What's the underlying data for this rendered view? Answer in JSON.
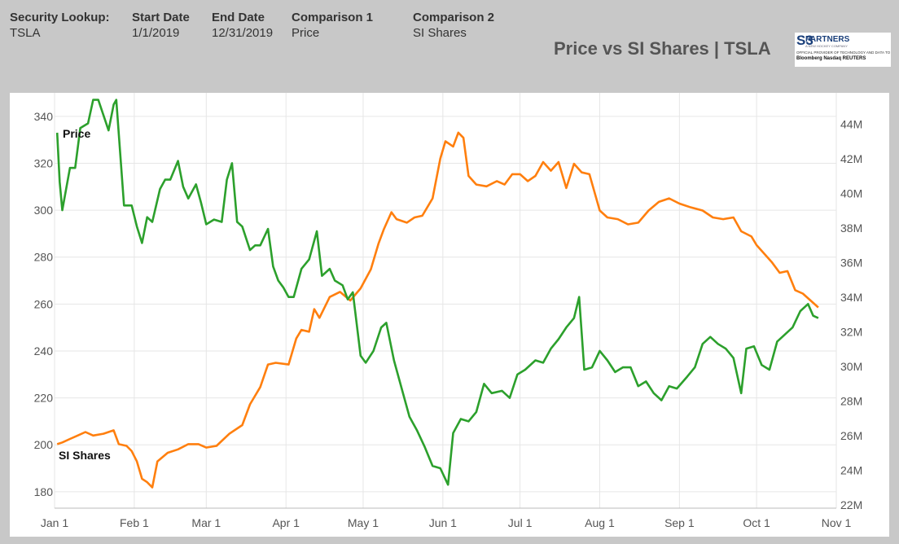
{
  "header": {
    "fields": [
      {
        "label": "Security Lookup:",
        "value": "TSLA"
      },
      {
        "label": "Start Date",
        "value": "1/1/2019"
      },
      {
        "label": "End Date",
        "value": "12/31/2019"
      },
      {
        "label": "Comparison 1",
        "value": "Price"
      },
      {
        "label": "Comparison 2",
        "value": "SI Shares"
      }
    ],
    "title": "Price vs SI Shares | TSLA",
    "logo": {
      "mark": "S3",
      "name": "PARTNERS",
      "tagline": "A NEW HOCKEY COMPANY",
      "subtitle": "OFFICIAL PROVIDER OF TECHNOLOGY AND DATA TO",
      "partners": "Bloomberg  Nasdaq  REUTERS"
    }
  },
  "colors": {
    "price": "#2ca02c",
    "si_shares": "#ff7f0e",
    "grid": "#e6e6e6"
  },
  "chart_data": {
    "type": "line",
    "x_ticks": [
      "Jan 1",
      "Feb 1",
      "Mar 1",
      "Apr 1",
      "May 1",
      "Jun 1",
      "Jul 1",
      "Aug 1",
      "Sep 1",
      "Oct 1",
      "Nov 1"
    ],
    "y_left": {
      "ticks": [
        "180",
        "200",
        "220",
        "240",
        "260",
        "280",
        "300",
        "320",
        "340"
      ],
      "range": [
        173,
        350
      ]
    },
    "y_right": {
      "ticks": [
        "22M",
        "24M",
        "26M",
        "28M",
        "30M",
        "32M",
        "34M",
        "36M",
        "38M",
        "40M",
        "42M",
        "44M"
      ],
      "range": [
        21.8,
        45.8
      ]
    },
    "series": [
      {
        "name": "Price",
        "axis": "left",
        "points": [
          [
            "2019-01-02",
            333
          ],
          [
            "2019-01-03",
            312
          ],
          [
            "2019-01-04",
            300
          ],
          [
            "2019-01-07",
            318
          ],
          [
            "2019-01-09",
            318
          ],
          [
            "2019-01-11",
            335
          ],
          [
            "2019-01-14",
            337
          ],
          [
            "2019-01-16",
            347
          ],
          [
            "2019-01-18",
            347
          ],
          [
            "2019-01-22",
            334
          ],
          [
            "2019-01-24",
            345
          ],
          [
            "2019-01-25",
            347
          ],
          [
            "2019-01-28",
            302
          ],
          [
            "2019-01-30",
            302
          ],
          [
            "2019-01-31",
            302
          ],
          [
            "2019-02-02",
            293
          ],
          [
            "2019-02-04",
            286
          ],
          [
            "2019-02-06",
            297
          ],
          [
            "2019-02-08",
            295
          ],
          [
            "2019-02-11",
            309
          ],
          [
            "2019-02-13",
            313
          ],
          [
            "2019-02-15",
            313
          ],
          [
            "2019-02-18",
            321
          ],
          [
            "2019-02-20",
            310
          ],
          [
            "2019-02-22",
            305
          ],
          [
            "2019-02-25",
            311
          ],
          [
            "2019-02-27",
            303
          ],
          [
            "2019-03-01",
            294
          ],
          [
            "2019-03-04",
            296
          ],
          [
            "2019-03-07",
            295
          ],
          [
            "2019-03-09",
            313
          ],
          [
            "2019-03-11",
            320
          ],
          [
            "2019-03-13",
            295
          ],
          [
            "2019-03-15",
            293
          ],
          [
            "2019-03-18",
            283
          ],
          [
            "2019-03-20",
            285
          ],
          [
            "2019-03-22",
            285
          ],
          [
            "2019-03-25",
            292
          ],
          [
            "2019-03-27",
            276
          ],
          [
            "2019-03-29",
            270
          ],
          [
            "2019-03-31",
            267
          ],
          [
            "2019-04-02",
            263
          ],
          [
            "2019-04-04",
            263
          ],
          [
            "2019-04-07",
            275
          ],
          [
            "2019-04-10",
            279
          ],
          [
            "2019-04-13",
            291
          ],
          [
            "2019-04-15",
            272
          ],
          [
            "2019-04-18",
            275
          ],
          [
            "2019-04-20",
            270
          ],
          [
            "2019-04-23",
            268
          ],
          [
            "2019-04-25",
            262
          ],
          [
            "2019-04-27",
            265
          ],
          [
            "2019-04-30",
            238
          ],
          [
            "2019-05-02",
            235
          ],
          [
            "2019-05-05",
            240
          ],
          [
            "2019-05-08",
            250
          ],
          [
            "2019-05-10",
            252
          ],
          [
            "2019-05-13",
            236
          ],
          [
            "2019-05-16",
            224
          ],
          [
            "2019-05-19",
            212
          ],
          [
            "2019-05-22",
            206
          ],
          [
            "2019-05-25",
            199
          ],
          [
            "2019-05-28",
            191
          ],
          [
            "2019-05-31",
            190
          ],
          [
            "2019-06-03",
            183
          ],
          [
            "2019-06-05",
            205
          ],
          [
            "2019-06-08",
            211
          ],
          [
            "2019-06-11",
            210
          ],
          [
            "2019-06-14",
            214
          ],
          [
            "2019-06-17",
            226
          ],
          [
            "2019-06-20",
            222
          ],
          [
            "2019-06-24",
            223
          ],
          [
            "2019-06-27",
            220
          ],
          [
            "2019-06-30",
            230
          ],
          [
            "2019-07-03",
            232
          ],
          [
            "2019-07-07",
            236
          ],
          [
            "2019-07-10",
            235
          ],
          [
            "2019-07-13",
            241
          ],
          [
            "2019-07-16",
            245
          ],
          [
            "2019-07-19",
            250
          ],
          [
            "2019-07-22",
            254
          ],
          [
            "2019-07-24",
            263
          ],
          [
            "2019-07-26",
            232
          ],
          [
            "2019-07-29",
            233
          ],
          [
            "2019-08-01",
            240
          ],
          [
            "2019-08-04",
            236
          ],
          [
            "2019-08-07",
            231
          ],
          [
            "2019-08-10",
            233
          ],
          [
            "2019-08-13",
            233
          ],
          [
            "2019-08-16",
            225
          ],
          [
            "2019-08-19",
            227
          ],
          [
            "2019-08-22",
            222
          ],
          [
            "2019-08-25",
            219
          ],
          [
            "2019-08-28",
            225
          ],
          [
            "2019-08-31",
            224
          ],
          [
            "2019-09-04",
            229
          ],
          [
            "2019-09-07",
            233
          ],
          [
            "2019-09-10",
            243
          ],
          [
            "2019-09-13",
            246
          ],
          [
            "2019-09-16",
            243
          ],
          [
            "2019-09-19",
            241
          ],
          [
            "2019-09-22",
            237
          ],
          [
            "2019-09-25",
            222
          ],
          [
            "2019-09-27",
            241
          ],
          [
            "2019-09-30",
            242
          ],
          [
            "2019-10-03",
            234
          ],
          [
            "2019-10-06",
            232
          ],
          [
            "2019-10-09",
            244
          ],
          [
            "2019-10-12",
            247
          ],
          [
            "2019-10-15",
            250
          ],
          [
            "2019-10-18",
            257
          ],
          [
            "2019-10-21",
            260
          ],
          [
            "2019-10-23",
            255
          ],
          [
            "2019-10-25",
            254
          ]
        ]
      },
      {
        "name": "SI Shares",
        "axis": "right",
        "points": [
          [
            "2019-01-02",
            25.5
          ],
          [
            "2019-01-04",
            25.6
          ],
          [
            "2019-01-07",
            25.8
          ],
          [
            "2019-01-10",
            26.0
          ],
          [
            "2019-01-13",
            26.2
          ],
          [
            "2019-01-16",
            26.0
          ],
          [
            "2019-01-20",
            26.1
          ],
          [
            "2019-01-24",
            26.3
          ],
          [
            "2019-01-26",
            25.5
          ],
          [
            "2019-01-29",
            25.4
          ],
          [
            "2019-01-31",
            25.1
          ],
          [
            "2019-02-02",
            24.5
          ],
          [
            "2019-02-04",
            23.5
          ],
          [
            "2019-02-06",
            23.3
          ],
          [
            "2019-02-08",
            23.0
          ],
          [
            "2019-02-10",
            24.5
          ],
          [
            "2019-02-14",
            25.0
          ],
          [
            "2019-02-18",
            25.2
          ],
          [
            "2019-02-22",
            25.5
          ],
          [
            "2019-02-26",
            25.5
          ],
          [
            "2019-03-01",
            25.3
          ],
          [
            "2019-03-05",
            25.4
          ],
          [
            "2019-03-10",
            26.1
          ],
          [
            "2019-03-15",
            26.6
          ],
          [
            "2019-03-18",
            27.8
          ],
          [
            "2019-03-22",
            28.8
          ],
          [
            "2019-03-25",
            30.1
          ],
          [
            "2019-03-28",
            30.2
          ],
          [
            "2019-04-02",
            30.1
          ],
          [
            "2019-04-05",
            31.6
          ],
          [
            "2019-04-07",
            32.1
          ],
          [
            "2019-04-10",
            32.0
          ],
          [
            "2019-04-12",
            33.3
          ],
          [
            "2019-04-14",
            32.8
          ],
          [
            "2019-04-18",
            34.0
          ],
          [
            "2019-04-22",
            34.3
          ],
          [
            "2019-04-26",
            33.8
          ],
          [
            "2019-04-30",
            34.5
          ],
          [
            "2019-05-04",
            35.6
          ],
          [
            "2019-05-07",
            37.1
          ],
          [
            "2019-05-09",
            37.9
          ],
          [
            "2019-05-12",
            38.9
          ],
          [
            "2019-05-14",
            38.5
          ],
          [
            "2019-05-18",
            38.3
          ],
          [
            "2019-05-21",
            38.6
          ],
          [
            "2019-05-24",
            38.7
          ],
          [
            "2019-05-28",
            39.7
          ],
          [
            "2019-05-31",
            42.0
          ],
          [
            "2019-06-02",
            43.0
          ],
          [
            "2019-06-05",
            42.7
          ],
          [
            "2019-06-07",
            43.5
          ],
          [
            "2019-06-09",
            43.2
          ],
          [
            "2019-06-11",
            41.0
          ],
          [
            "2019-06-14",
            40.5
          ],
          [
            "2019-06-18",
            40.4
          ],
          [
            "2019-06-22",
            40.7
          ],
          [
            "2019-06-25",
            40.5
          ],
          [
            "2019-06-28",
            41.1
          ],
          [
            "2019-07-01",
            41.1
          ],
          [
            "2019-07-04",
            40.7
          ],
          [
            "2019-07-07",
            41.0
          ],
          [
            "2019-07-10",
            41.8
          ],
          [
            "2019-07-13",
            41.3
          ],
          [
            "2019-07-16",
            41.8
          ],
          [
            "2019-07-19",
            40.3
          ],
          [
            "2019-07-22",
            41.7
          ],
          [
            "2019-07-25",
            41.2
          ],
          [
            "2019-07-28",
            41.1
          ],
          [
            "2019-08-01",
            39.0
          ],
          [
            "2019-08-04",
            38.6
          ],
          [
            "2019-08-08",
            38.5
          ],
          [
            "2019-08-12",
            38.2
          ],
          [
            "2019-08-16",
            38.3
          ],
          [
            "2019-08-20",
            39.0
          ],
          [
            "2019-08-24",
            39.5
          ],
          [
            "2019-08-28",
            39.7
          ],
          [
            "2019-09-01",
            39.4
          ],
          [
            "2019-09-05",
            39.2
          ],
          [
            "2019-09-10",
            39.0
          ],
          [
            "2019-09-14",
            38.6
          ],
          [
            "2019-09-18",
            38.5
          ],
          [
            "2019-09-22",
            38.6
          ],
          [
            "2019-09-25",
            37.8
          ],
          [
            "2019-09-29",
            37.5
          ],
          [
            "2019-10-01",
            37.0
          ],
          [
            "2019-10-04",
            36.5
          ],
          [
            "2019-10-07",
            36.0
          ],
          [
            "2019-10-10",
            35.4
          ],
          [
            "2019-10-13",
            35.5
          ],
          [
            "2019-10-16",
            34.4
          ],
          [
            "2019-10-19",
            34.2
          ],
          [
            "2019-10-22",
            33.8
          ],
          [
            "2019-10-25",
            33.4
          ]
        ]
      }
    ]
  }
}
